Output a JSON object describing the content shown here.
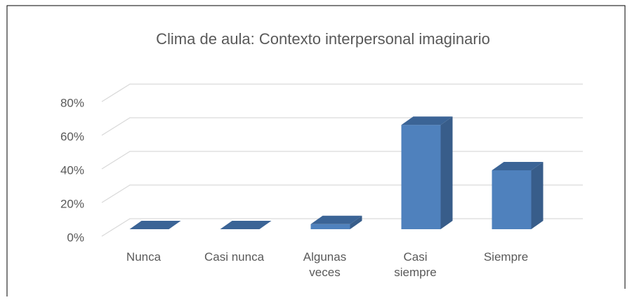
{
  "chart_data": {
    "type": "bar3d",
    "title": "Clima de aula: Contexto interpersonal imaginario",
    "categories": [
      "Nunca",
      "Casi nunca",
      "Algunas veces",
      "Casi siempre",
      "Siempre"
    ],
    "values": [
      0,
      0,
      3,
      62,
      35
    ],
    "color": "#4f81bd",
    "ylim": [
      0,
      80
    ],
    "yticks": [
      {
        "value": 0,
        "label": "0%"
      },
      {
        "value": 20,
        "label": "20%"
      },
      {
        "value": 40,
        "label": "40%"
      },
      {
        "value": 60,
        "label": "60%"
      },
      {
        "value": 80,
        "label": "80%"
      }
    ],
    "grid": true
  }
}
